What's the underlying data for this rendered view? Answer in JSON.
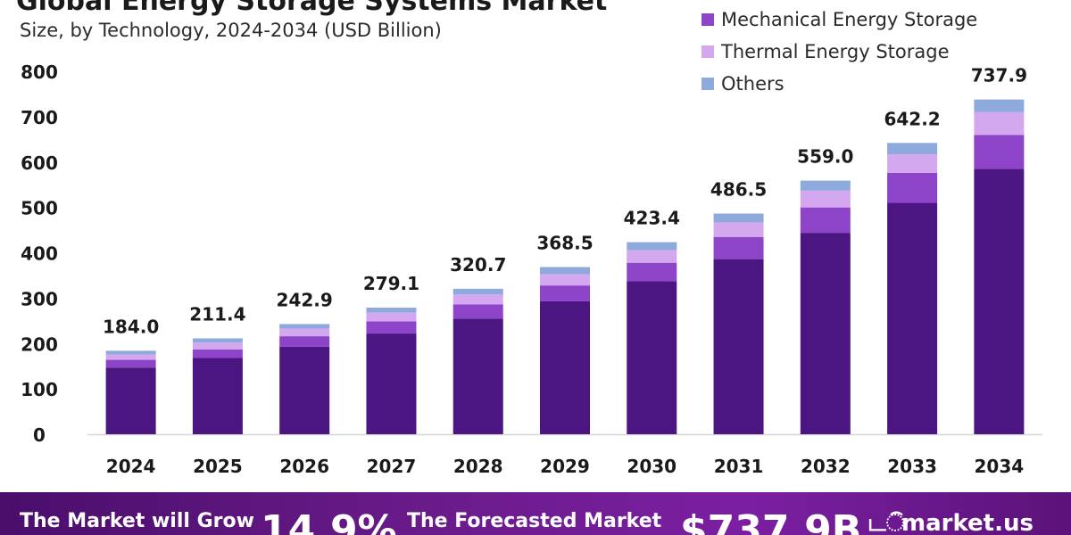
{
  "header": {
    "title": "Global Energy Storage Systems Market",
    "subtitle": "Size, by Technology, 2024-2034 (USD Billion)"
  },
  "legend": [
    {
      "label": "Mechanical Energy Storage",
      "color": "#8e44c9"
    },
    {
      "label": "Thermal Energy Storage",
      "color": "#d4a8ee"
    },
    {
      "label": "Others",
      "color": "#8ea9dc"
    }
  ],
  "banner": {
    "grow_text": "The Market will Grow",
    "cagr": "14.9%",
    "forecast_text": "The Forecasted Market",
    "value": "$737.9B",
    "logo_icon": "டି",
    "logo": "market.us"
  },
  "chart_data": {
    "type": "bar",
    "stacked": true,
    "categories": [
      "2024",
      "2025",
      "2026",
      "2027",
      "2028",
      "2029",
      "2030",
      "2031",
      "2032",
      "2033",
      "2034"
    ],
    "totals": [
      184.0,
      211.4,
      242.9,
      279.1,
      320.7,
      368.5,
      423.4,
      486.5,
      559.0,
      642.2,
      737.9
    ],
    "total_labels": [
      "184.0",
      "211.4",
      "242.9",
      "279.1",
      "320.7",
      "368.5",
      "423.4",
      "486.5",
      "559.0",
      "642.2",
      "737.9"
    ],
    "series": [
      {
        "color": "#4b1582",
        "values": [
          147,
          168,
          193,
          222,
          255,
          293,
          337,
          386,
          444,
          510,
          585
        ]
      },
      {
        "name": "Mechanical Energy Storage",
        "color": "#8e44c9",
        "values": [
          17,
          19,
          23,
          27,
          31,
          35,
          41,
          49,
          56,
          66,
          75
        ]
      },
      {
        "name": "Thermal Energy Storage",
        "color": "#d4a8ee",
        "values": [
          12,
          15,
          17,
          19,
          22,
          25,
          28,
          32,
          37,
          41,
          50
        ]
      },
      {
        "name": "Others",
        "color": "#8ea9dc",
        "values": [
          8,
          9.4,
          9.9,
          11.1,
          12.7,
          15.5,
          17.4,
          19.5,
          22,
          25.2,
          27.9
        ]
      }
    ],
    "y_ticks": [
      0,
      100,
      200,
      300,
      400,
      500,
      600,
      700,
      800
    ],
    "ylim": [
      0,
      800
    ],
    "grid": false,
    "legend_position": "top-right"
  }
}
